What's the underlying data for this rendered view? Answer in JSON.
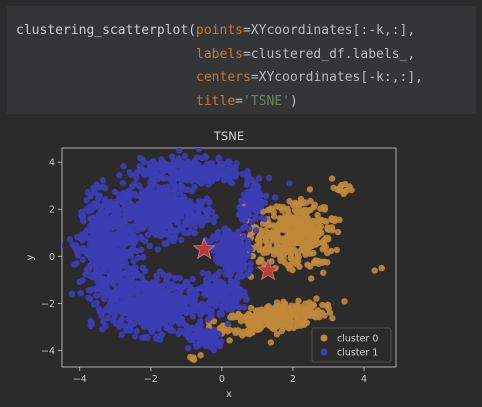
{
  "code": {
    "line1": {
      "fn": "clustering_scatterplot(",
      "param": "points",
      "rest": "=XYcoordinates[:-k,:],",
      "comma": ""
    },
    "line2": {
      "param": "labels",
      "rest": "=clustered_df.labels_,"
    },
    "line3": {
      "param": "centers",
      "rest": "=XYcoordinates[-k:,:],"
    },
    "line4": {
      "param": "title",
      "eq": "=",
      "str": "'TSNE'",
      "close": ")"
    }
  },
  "chart_data": {
    "type": "scatter",
    "title": "TSNE",
    "xlabel": "x",
    "ylabel": "y",
    "xlim": [
      -4.5,
      4.9
    ],
    "ylim": [
      -4.7,
      4.6
    ],
    "xticks": [
      -4,
      -2,
      0,
      2,
      4
    ],
    "yticks": [
      -4,
      -2,
      0,
      2,
      4
    ],
    "grid": false,
    "legend_position": "bottom-right",
    "series": [
      {
        "name": "cluster 0",
        "color": "#c0883a",
        "blobs": [
          {
            "cx": 2.0,
            "cy": 0.9,
            "rx": 1.1,
            "ry": 1.35,
            "n": 420,
            "rot": -20
          },
          {
            "cx": 1.5,
            "cy": -2.6,
            "rx": 1.45,
            "ry": 0.55,
            "n": 330,
            "rot": 14
          },
          {
            "cx": 3.3,
            "cy": 2.9,
            "rx": 0.35,
            "ry": 0.2,
            "n": 14,
            "rot": -20
          },
          {
            "cx": -0.85,
            "cy": -4.35,
            "rx": 0.1,
            "ry": 0.08,
            "n": 3,
            "rot": 0
          },
          {
            "cx": 2.7,
            "cy": -0.3,
            "rx": 0.25,
            "ry": 0.25,
            "n": 8,
            "rot": 0
          }
        ],
        "points": [
          [
            4.5,
            -0.5
          ],
          [
            4.3,
            -0.6
          ],
          [
            3.1,
            3.3
          ],
          [
            -0.8,
            -4.3
          ],
          [
            -0.6,
            -4.2
          ]
        ]
      },
      {
        "name": "cluster 1",
        "color": "#3d3db5",
        "blobs": [
          {
            "cx": -3.2,
            "cy": 0.3,
            "rx": 0.8,
            "ry": 2.4,
            "n": 520,
            "rot": 0
          },
          {
            "cx": -1.9,
            "cy": -2.1,
            "rx": 1.2,
            "ry": 1.25,
            "n": 480,
            "rot": 0
          },
          {
            "cx": -1.7,
            "cy": 1.9,
            "rx": 1.2,
            "ry": 1.2,
            "n": 420,
            "rot": 0
          },
          {
            "cx": -0.9,
            "cy": 3.6,
            "rx": 1.5,
            "ry": 0.6,
            "n": 260,
            "rot": 0
          },
          {
            "cx": 0.2,
            "cy": 0.4,
            "rx": 0.5,
            "ry": 0.7,
            "n": 140,
            "rot": 0
          },
          {
            "cx": 0.0,
            "cy": -1.6,
            "rx": 0.6,
            "ry": 0.9,
            "n": 150,
            "rot": 0
          },
          {
            "cx": 0.9,
            "cy": 2.2,
            "rx": 0.4,
            "ry": 0.9,
            "n": 80,
            "rot": 0
          },
          {
            "cx": -0.5,
            "cy": -3.5,
            "rx": 0.6,
            "ry": 0.5,
            "n": 90,
            "rot": 0
          },
          {
            "cx": 0.4,
            "cy": -0.4,
            "rx": 0.4,
            "ry": 0.5,
            "n": 60,
            "rot": 0
          }
        ],
        "points": [
          [
            -4.0,
            0.3
          ],
          [
            -4.2,
            0.5
          ],
          [
            0.8,
            0.3
          ],
          [
            1.5,
            2.5
          ],
          [
            1.9,
            3.1
          ],
          [
            0.6,
            1.2
          ],
          [
            0.5,
            -0.2
          ],
          [
            -1.2,
            4.5
          ]
        ]
      }
    ],
    "centers": {
      "color": "#c03c3c",
      "stroke": "#d08080",
      "points": [
        [
          -0.5,
          0.3
        ],
        [
          1.3,
          -0.6
        ]
      ]
    }
  }
}
